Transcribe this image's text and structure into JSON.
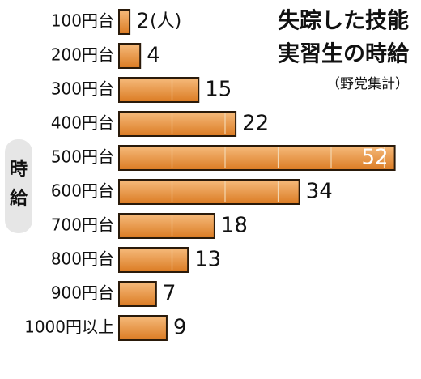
{
  "chart_data": {
    "type": "bar",
    "orientation": "horizontal",
    "title_lines": [
      "失踪した技能",
      "実習生の時給"
    ],
    "source": "（野党集計）",
    "axis_label_chars": [
      "時",
      "給"
    ],
    "unit": "(人)",
    "categories": [
      "100円台",
      "200円台",
      "300円台",
      "400円台",
      "500円台",
      "600円台",
      "700円台",
      "800円台",
      "900円台",
      "1000円以上"
    ],
    "values": [
      2,
      4,
      15,
      22,
      52,
      34,
      18,
      13,
      7,
      9
    ],
    "highlight_index": 4,
    "gridlines": true,
    "colors": {
      "bar_light": "#F6BB7C",
      "bar_dark": "#DB7B22",
      "bar_stroke": "#2a1a0a",
      "highlight_label": "#FFFFFF",
      "text": "#111111",
      "axis_label_bg": "#E6E6E6",
      "grid": "#F3D6AF"
    }
  }
}
